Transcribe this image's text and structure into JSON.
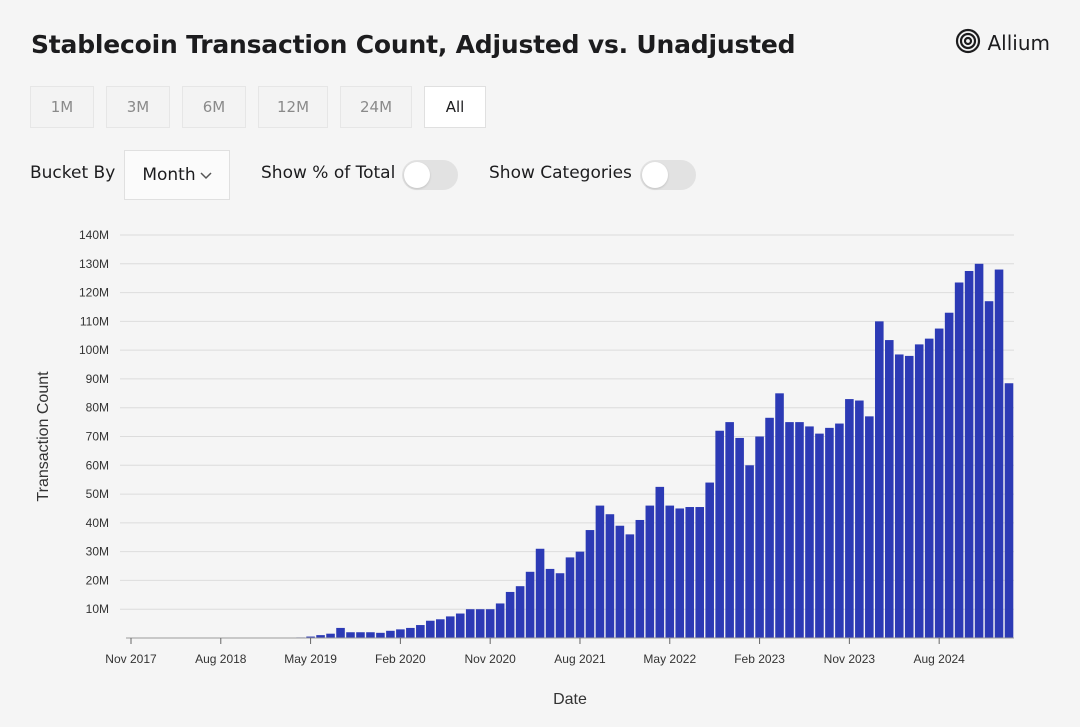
{
  "header": {
    "title": "Stablecoin Transaction Count, Adjusted vs. Unadjusted",
    "logo_text": "Allium"
  },
  "range_buttons": [
    {
      "label": "1M",
      "active": false
    },
    {
      "label": "3M",
      "active": false
    },
    {
      "label": "6M",
      "active": false
    },
    {
      "label": "12M",
      "active": false
    },
    {
      "label": "24M",
      "active": false
    },
    {
      "label": "All",
      "active": true
    }
  ],
  "controls": {
    "bucket_label": "Bucket By",
    "bucket_value": "Month",
    "show_pct_label": "Show % of Total",
    "show_pct_on": false,
    "show_categories_label": "Show Categories",
    "show_categories_on": false
  },
  "colors": {
    "bar": "#2c3ab5",
    "grid": "#dcdcdc"
  },
  "chart_data": {
    "type": "bar",
    "title": "",
    "xlabel": "Date",
    "ylabel": "Transaction Count",
    "ylim": [
      0,
      140000000
    ],
    "yticks": [
      "10M",
      "20M",
      "30M",
      "40M",
      "50M",
      "60M",
      "70M",
      "80M",
      "90M",
      "100M",
      "110M",
      "120M",
      "130M",
      "140M"
    ],
    "xticks": [
      {
        "label": "Nov 2017",
        "index": 0
      },
      {
        "label": "Aug 2018",
        "index": 9
      },
      {
        "label": "May 2019",
        "index": 18
      },
      {
        "label": "Feb 2020",
        "index": 27
      },
      {
        "label": "Nov 2020",
        "index": 36
      },
      {
        "label": "Aug 2021",
        "index": 45
      },
      {
        "label": "May 2022",
        "index": 54
      },
      {
        "label": "Feb 2023",
        "index": 63
      },
      {
        "label": "Nov 2023",
        "index": 72
      },
      {
        "label": "Aug 2024",
        "index": 81
      }
    ],
    "grid": true,
    "categories": [
      "Nov 2017",
      "Dec 2017",
      "Jan 2018",
      "Feb 2018",
      "Mar 2018",
      "Apr 2018",
      "May 2018",
      "Jun 2018",
      "Jul 2018",
      "Aug 2018",
      "Sep 2018",
      "Oct 2018",
      "Nov 2018",
      "Dec 2018",
      "Jan 2019",
      "Feb 2019",
      "Mar 2019",
      "Apr 2019",
      "May 2019",
      "Jun 2019",
      "Jul 2019",
      "Aug 2019",
      "Sep 2019",
      "Oct 2019",
      "Nov 2019",
      "Dec 2019",
      "Jan 2020",
      "Feb 2020",
      "Mar 2020",
      "Apr 2020",
      "May 2020",
      "Jun 2020",
      "Jul 2020",
      "Aug 2020",
      "Sep 2020",
      "Oct 2020",
      "Nov 2020",
      "Dec 2020",
      "Jan 2021",
      "Feb 2021",
      "Mar 2021",
      "Apr 2021",
      "May 2021",
      "Jun 2021",
      "Jul 2021",
      "Aug 2021",
      "Sep 2021",
      "Oct 2021",
      "Nov 2021",
      "Dec 2021",
      "Jan 2022",
      "Feb 2022",
      "Mar 2022",
      "Apr 2022",
      "May 2022",
      "Jun 2022",
      "Jul 2022",
      "Aug 2022",
      "Sep 2022",
      "Oct 2022",
      "Nov 2022",
      "Dec 2022",
      "Jan 2023",
      "Feb 2023",
      "Mar 2023",
      "Apr 2023",
      "May 2023",
      "Jun 2023",
      "Jul 2023",
      "Aug 2023",
      "Sep 2023",
      "Oct 2023",
      "Nov 2023",
      "Dec 2023",
      "Jan 2024",
      "Feb 2024",
      "Mar 2024",
      "Apr 2024",
      "May 2024",
      "Jun 2024",
      "Jul 2024",
      "Aug 2024",
      "Sep 2024",
      "Oct 2024",
      "Nov 2024",
      "Dec 2024",
      "Jan 2025",
      "Feb 2025",
      "Mar 2025"
    ],
    "values": [
      0,
      0,
      0,
      0,
      0,
      0,
      0,
      0,
      0,
      0,
      0,
      0,
      0,
      0,
      0,
      0,
      0,
      200000,
      500000,
      1000000,
      1500000,
      3500000,
      2000000,
      2000000,
      2000000,
      1800000,
      2500000,
      3000000,
      3500000,
      4500000,
      6000000,
      6500000,
      7500000,
      8500000,
      10000000,
      10000000,
      10000000,
      12000000,
      16000000,
      18000000,
      23000000,
      31000000,
      24000000,
      22500000,
      28000000,
      30000000,
      37500000,
      46000000,
      43000000,
      39000000,
      36000000,
      41000000,
      46000000,
      52500000,
      46000000,
      45000000,
      45500000,
      45500000,
      54000000,
      72000000,
      75000000,
      69500000,
      60000000,
      70000000,
      76500000,
      85000000,
      75000000,
      75000000,
      73500000,
      71000000,
      73000000,
      74500000,
      83000000,
      82500000,
      77000000,
      110000000,
      103500000,
      98500000,
      98000000,
      102000000,
      104000000,
      107500000,
      113000000,
      123500000,
      127500000,
      130000000,
      117000000,
      128000000,
      88500000
    ]
  }
}
